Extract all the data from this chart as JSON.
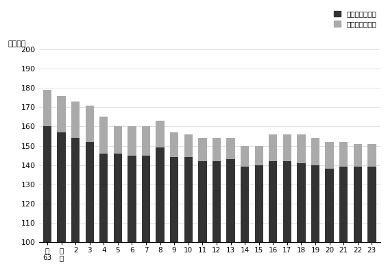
{
  "categories": [
    "昭\n63",
    "平\n元",
    "2",
    "3",
    "4",
    "5",
    "6",
    "7",
    "8",
    "9",
    "10",
    "11",
    "12",
    "13",
    "14",
    "15",
    "16",
    "17",
    "18",
    "19",
    "20",
    "21",
    "22",
    "23"
  ],
  "naijo": [
    160,
    157,
    154,
    152,
    146,
    146,
    145,
    145,
    149,
    144,
    144,
    142,
    142,
    143,
    139,
    140,
    142,
    142,
    141,
    140,
    138,
    139,
    139,
    139
  ],
  "gaijo": [
    19,
    19,
    19,
    19,
    19,
    14,
    15,
    15,
    14,
    13,
    12,
    12,
    12,
    11,
    11,
    10,
    14,
    14,
    15,
    14,
    14,
    13,
    12,
    12
  ],
  "ylim": [
    100,
    200
  ],
  "yticks": [
    100,
    110,
    120,
    130,
    140,
    150,
    160,
    170,
    180,
    190,
    200
  ],
  "bar_color_naijo": "#333333",
  "bar_color_gaijo": "#aaaaaa",
  "ylabel": "（時間）",
  "legend_naijo": "所定内労働時間",
  "legend_gaijo": "所定外労働時間",
  "fig_width": 5.66,
  "fig_height": 4.01,
  "base": 100
}
